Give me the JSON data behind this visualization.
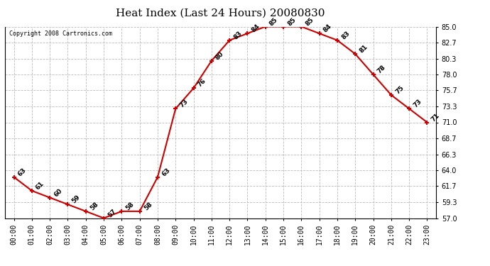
{
  "title": "Heat Index (Last 24 Hours) 20080830",
  "copyright": "Copyright 2008 Cartronics.com",
  "hours": [
    "00:00",
    "01:00",
    "02:00",
    "03:00",
    "04:00",
    "05:00",
    "06:00",
    "07:00",
    "08:00",
    "09:00",
    "10:00",
    "11:00",
    "12:00",
    "13:00",
    "14:00",
    "15:00",
    "16:00",
    "17:00",
    "18:00",
    "19:00",
    "20:00",
    "21:00",
    "22:00",
    "23:00"
  ],
  "values": [
    63,
    61,
    60,
    59,
    58,
    57,
    58,
    58,
    63,
    73,
    76,
    80,
    83,
    84,
    85,
    85,
    85,
    84,
    83,
    81,
    78,
    75,
    73,
    71
  ],
  "line_color": "#cc0000",
  "marker_color": "#cc0000",
  "bg_color": "#ffffff",
  "plot_bg_color": "#ffffff",
  "grid_color": "#bbbbbb",
  "title_fontsize": 11,
  "tick_fontsize": 7,
  "annotation_fontsize": 6.5,
  "ylim_min": 57.0,
  "ylim_max": 85.0,
  "yticks": [
    57.0,
    59.3,
    61.7,
    64.0,
    66.3,
    68.7,
    71.0,
    73.3,
    75.7,
    78.0,
    80.3,
    82.7,
    85.0
  ]
}
